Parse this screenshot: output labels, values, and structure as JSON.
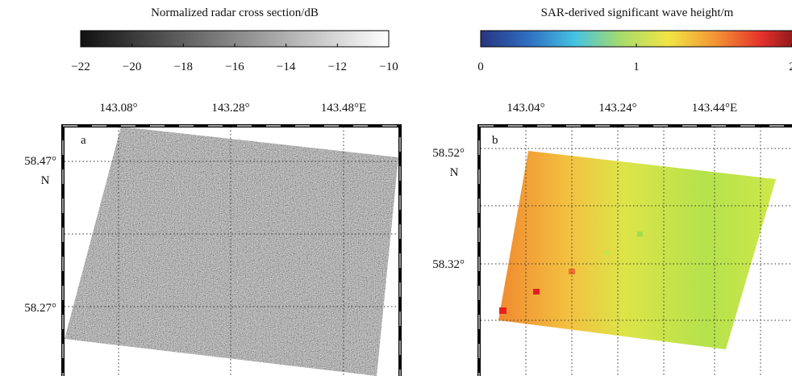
{
  "panels": [
    {
      "letter": "a",
      "colorbar": {
        "title": "Normalized radar cross section/dB",
        "ticks": [
          {
            "value": -22,
            "label": "−22"
          },
          {
            "value": -20,
            "label": "−20"
          },
          {
            "value": -18,
            "label": "−18"
          },
          {
            "value": -16,
            "label": "−16"
          },
          {
            "value": -14,
            "label": "−14"
          },
          {
            "value": -12,
            "label": "−12"
          },
          {
            "value": -10,
            "label": "−10"
          }
        ]
      },
      "lon_labels": [
        "143.08°",
        "143.28°",
        "143.48°E"
      ],
      "lat_labels": [
        "58.47°",
        "58.27°"
      ],
      "lat_hemisphere": "N"
    },
    {
      "letter": "b",
      "colorbar": {
        "title": "SAR-derived significant wave height/m",
        "ticks": [
          0,
          1,
          2
        ]
      },
      "lon_labels": [
        "143.04°",
        "143.24°",
        "143.44°E"
      ],
      "lat_labels": [
        "58.52°",
        "58.32°"
      ],
      "lat_hemisphere": "N"
    }
  ]
}
